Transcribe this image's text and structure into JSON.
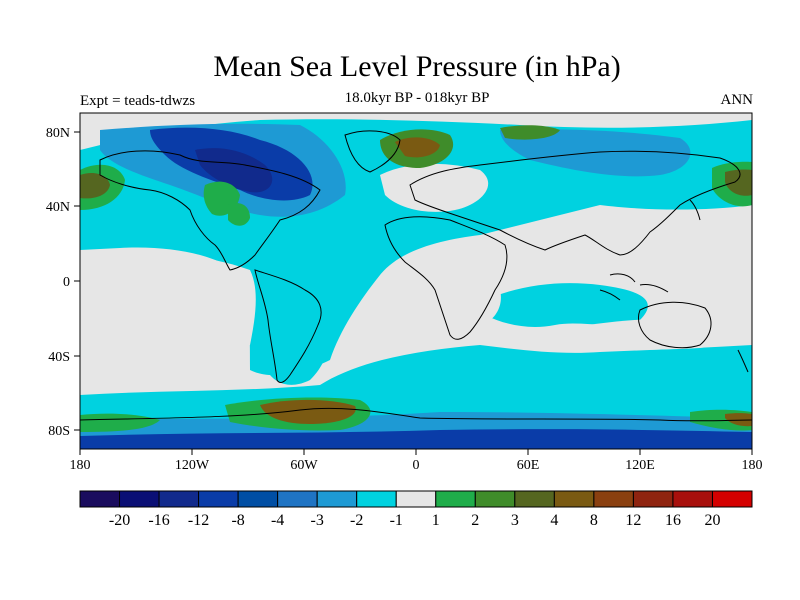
{
  "title": "Mean Sea Level Pressure (in hPa)",
  "subtitle": "18.0kyr BP - 018kyr BP",
  "left_note": "Expt = teads-tdwzs",
  "right_note": "ANN",
  "axes": {
    "x_ticks": [
      "180",
      "120W",
      "60W",
      "0",
      "60E",
      "120E",
      "180"
    ],
    "y_ticks": [
      "80N",
      "40N",
      "0",
      "40S",
      "80S"
    ]
  },
  "colorbar": {
    "colors": [
      "#1a0c5e",
      "#0a0f75",
      "#112a8c",
      "#0a3ca8",
      "#004ea4",
      "#1f74c4",
      "#1e9ad4",
      "#00d2e0",
      "#e6e6e6",
      "#1fad4a",
      "#3f8c2a",
      "#556620",
      "#7a5a12",
      "#8a4010",
      "#8f2410",
      "#a8100c",
      "#d40000"
    ],
    "labels": [
      "-20",
      "-16",
      "-12",
      "-8",
      "-4",
      "-3",
      "-2",
      "-1",
      "1",
      "2",
      "3",
      "4",
      "8",
      "12",
      "16",
      "20"
    ]
  },
  "legend_colors": {
    "land_bg": "#e6e6e6",
    "light_blue": "#00d2e0",
    "mid_blue": "#1e9ad4",
    "deep_blue": "#0a3ca8",
    "green": "#1fad4a",
    "olive": "#556620",
    "brown": "#7a5a12"
  }
}
